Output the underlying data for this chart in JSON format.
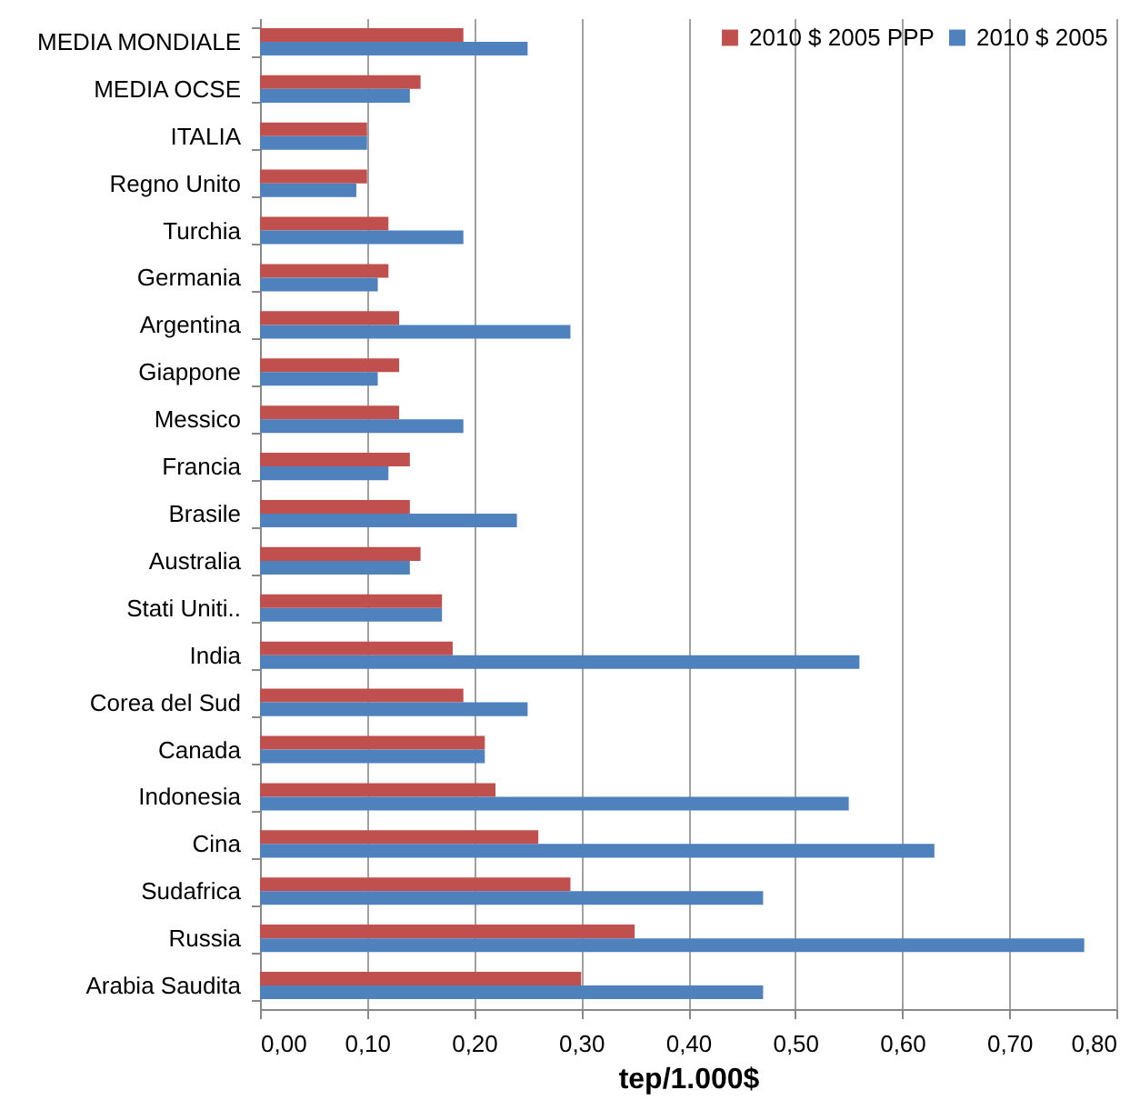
{
  "chart_data": {
    "type": "bar",
    "orientation": "horizontal",
    "xlabel": "tep/1.000$",
    "categories": [
      "MEDIA MONDIALE",
      "MEDIA OCSE",
      "ITALIA",
      "Regno Unito",
      "Turchia",
      "Germania",
      "Argentina",
      "Giappone",
      "Messico",
      "Francia",
      "Brasile",
      "Australia",
      "Stati Uniti..",
      "India",
      "Corea del Sud",
      "Canada",
      "Indonesia",
      "Cina",
      "Sudafrica",
      "Russia",
      "Arabia Saudita"
    ],
    "series": [
      {
        "name": "2010 $ 2005 PPP",
        "color": "#c0504d",
        "values": [
          0.19,
          0.15,
          0.1,
          0.1,
          0.12,
          0.12,
          0.13,
          0.13,
          0.13,
          0.14,
          0.14,
          0.15,
          0.17,
          0.18,
          0.19,
          0.21,
          0.22,
          0.26,
          0.29,
          0.35,
          0.3
        ]
      },
      {
        "name": "2010 $ 2005",
        "color": "#4f81bd",
        "values": [
          0.25,
          0.14,
          0.1,
          0.09,
          0.19,
          0.11,
          0.29,
          0.11,
          0.19,
          0.12,
          0.24,
          0.14,
          0.17,
          0.56,
          0.25,
          0.21,
          0.55,
          0.63,
          0.47,
          0.77,
          0.47
        ]
      }
    ],
    "xlim": [
      0,
      0.8
    ],
    "xticks": [
      {
        "value": 0,
        "label": "0,00"
      },
      {
        "value": 0.1,
        "label": "0,10"
      },
      {
        "value": 0.2,
        "label": "0,20"
      },
      {
        "value": 0.3,
        "label": "0,30"
      },
      {
        "value": 0.4,
        "label": "0,40"
      },
      {
        "value": 0.5,
        "label": "0,50"
      },
      {
        "value": 0.6,
        "label": "0,60"
      },
      {
        "value": 0.7,
        "label": "0,70"
      },
      {
        "value": 0.8,
        "label": "0,80"
      }
    ],
    "grid": "x",
    "legend": "top right"
  }
}
